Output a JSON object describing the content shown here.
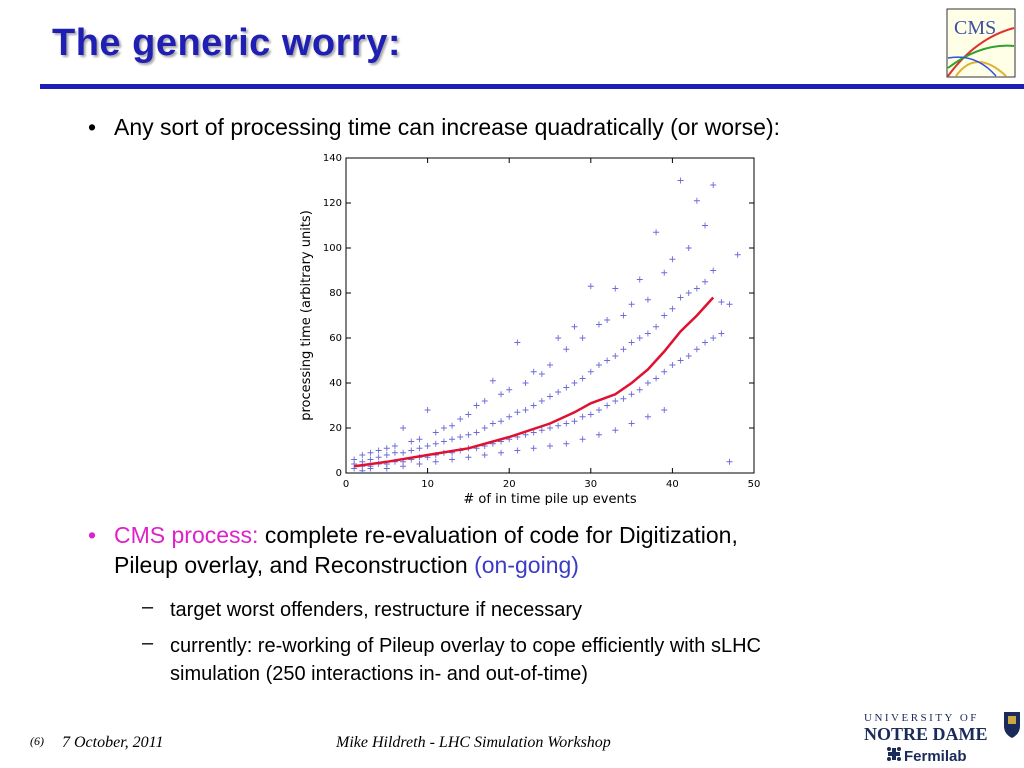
{
  "slide": {
    "title": "The generic worry:",
    "bullet1": "Any sort of processing time can increase quadratically (or worse):",
    "bullet2_highlight": "CMS process:",
    "bullet2_line1": " complete re-evaluation of code for Digitization,",
    "bullet2_line2": "Pileup overlay, and Reconstruction ",
    "bullet2_ongoing": "(on-going)",
    "sub1": "target worst offenders, restructure if necessary",
    "sub2_line1": "currently: re-working of Pileup overlay to cope efficiently with sLHC",
    "sub2_line2": "simulation (250 interactions in- and out-of-time)"
  },
  "logos": {
    "cms": "CMS",
    "notre_dame_top": "UNIVERSITY OF",
    "notre_dame_bottom": "NOTRE DAME",
    "fermilab": "Fermilab"
  },
  "footer": {
    "page": "(6)",
    "date": "7 October, 2011",
    "author": "Mike Hildreth  - LHC Simulation Workshop"
  },
  "colors": {
    "title": "#1f1fb4",
    "highlight": "#e020c8",
    "ongoing": "#3b3bc8",
    "points": "#6b6bd8",
    "curve": "#e01030"
  },
  "chart_data": {
    "type": "scatter",
    "xlabel": "# of in time pile up events",
    "ylabel": "processing time (arbitrary units)",
    "xlim": [
      0,
      50
    ],
    "ylim": [
      0,
      140
    ],
    "x_ticks": [
      "0",
      "10",
      "20",
      "30",
      "40",
      "50"
    ],
    "y_ticks": [
      "0",
      "20",
      "40",
      "60",
      "80",
      "100",
      "120",
      "140"
    ],
    "series": [
      {
        "marker": "+",
        "points": [
          [
            1,
            2
          ],
          [
            1,
            4
          ],
          [
            1,
            6
          ],
          [
            2,
            3
          ],
          [
            2,
            5
          ],
          [
            2,
            8
          ],
          [
            3,
            3
          ],
          [
            3,
            6
          ],
          [
            3,
            9
          ],
          [
            4,
            4
          ],
          [
            4,
            7
          ],
          [
            4,
            10
          ],
          [
            5,
            4
          ],
          [
            5,
            8
          ],
          [
            5,
            11
          ],
          [
            6,
            5
          ],
          [
            6,
            9
          ],
          [
            6,
            12
          ],
          [
            7,
            5
          ],
          [
            7,
            9
          ],
          [
            7,
            20
          ],
          [
            8,
            6
          ],
          [
            8,
            10
          ],
          [
            8,
            14
          ],
          [
            9,
            7
          ],
          [
            9,
            11
          ],
          [
            9,
            15
          ],
          [
            10,
            7
          ],
          [
            10,
            12
          ],
          [
            10,
            28
          ],
          [
            11,
            8
          ],
          [
            11,
            13
          ],
          [
            11,
            18
          ],
          [
            12,
            9
          ],
          [
            12,
            14
          ],
          [
            12,
            20
          ],
          [
            13,
            9
          ],
          [
            13,
            15
          ],
          [
            13,
            21
          ],
          [
            14,
            10
          ],
          [
            14,
            16
          ],
          [
            14,
            24
          ],
          [
            15,
            11
          ],
          [
            15,
            17
          ],
          [
            15,
            26
          ],
          [
            16,
            11
          ],
          [
            16,
            18
          ],
          [
            16,
            30
          ],
          [
            17,
            12
          ],
          [
            17,
            20
          ],
          [
            17,
            32
          ],
          [
            18,
            13
          ],
          [
            18,
            22
          ],
          [
            18,
            41
          ],
          [
            19,
            14
          ],
          [
            19,
            23
          ],
          [
            19,
            35
          ],
          [
            20,
            15
          ],
          [
            20,
            25
          ],
          [
            20,
            37
          ],
          [
            21,
            16
          ],
          [
            21,
            27
          ],
          [
            21,
            58
          ],
          [
            22,
            17
          ],
          [
            22,
            28
          ],
          [
            22,
            40
          ],
          [
            23,
            18
          ],
          [
            23,
            30
          ],
          [
            23,
            45
          ],
          [
            24,
            19
          ],
          [
            24,
            32
          ],
          [
            24,
            44
          ],
          [
            25,
            20
          ],
          [
            25,
            34
          ],
          [
            25,
            48
          ],
          [
            26,
            21
          ],
          [
            26,
            36
          ],
          [
            26,
            60
          ],
          [
            27,
            22
          ],
          [
            27,
            38
          ],
          [
            27,
            55
          ],
          [
            28,
            23
          ],
          [
            28,
            40
          ],
          [
            28,
            65
          ],
          [
            29,
            25
          ],
          [
            29,
            42
          ],
          [
            29,
            60
          ],
          [
            30,
            26
          ],
          [
            30,
            45
          ],
          [
            30,
            83
          ],
          [
            31,
            28
          ],
          [
            31,
            48
          ],
          [
            31,
            66
          ],
          [
            32,
            30
          ],
          [
            32,
            50
          ],
          [
            32,
            68
          ],
          [
            33,
            32
          ],
          [
            33,
            52
          ],
          [
            33,
            82
          ],
          [
            34,
            33
          ],
          [
            34,
            55
          ],
          [
            34,
            70
          ],
          [
            35,
            35
          ],
          [
            35,
            58
          ],
          [
            35,
            75
          ],
          [
            36,
            37
          ],
          [
            36,
            60
          ],
          [
            36,
            86
          ],
          [
            37,
            40
          ],
          [
            37,
            62
          ],
          [
            37,
            77
          ],
          [
            38,
            42
          ],
          [
            38,
            65
          ],
          [
            38,
            107
          ],
          [
            39,
            45
          ],
          [
            39,
            70
          ],
          [
            39,
            89
          ],
          [
            40,
            48
          ],
          [
            40,
            73
          ],
          [
            40,
            95
          ],
          [
            41,
            50
          ],
          [
            41,
            78
          ],
          [
            41,
            130
          ],
          [
            42,
            52
          ],
          [
            42,
            80
          ],
          [
            42,
            100
          ],
          [
            43,
            55
          ],
          [
            43,
            82
          ],
          [
            43,
            121
          ],
          [
            44,
            58
          ],
          [
            44,
            85
          ],
          [
            44,
            110
          ],
          [
            45,
            60
          ],
          [
            45,
            90
          ],
          [
            45,
            128
          ],
          [
            46,
            62
          ],
          [
            46,
            76
          ],
          [
            47,
            5
          ],
          [
            47,
            75
          ],
          [
            48,
            97
          ],
          [
            2,
            1
          ],
          [
            3,
            2
          ],
          [
            5,
            2
          ],
          [
            7,
            3
          ],
          [
            9,
            4
          ],
          [
            11,
            5
          ],
          [
            13,
            6
          ],
          [
            15,
            7
          ],
          [
            17,
            8
          ],
          [
            19,
            9
          ],
          [
            21,
            10
          ],
          [
            23,
            11
          ],
          [
            25,
            12
          ],
          [
            27,
            13
          ],
          [
            29,
            15
          ],
          [
            31,
            17
          ],
          [
            33,
            19
          ],
          [
            35,
            22
          ],
          [
            37,
            25
          ],
          [
            39,
            28
          ]
        ]
      },
      {
        "type": "line",
        "points": [
          [
            1,
            3
          ],
          [
            5,
            5
          ],
          [
            10,
            8
          ],
          [
            15,
            11
          ],
          [
            20,
            16
          ],
          [
            25,
            22
          ],
          [
            28,
            27
          ],
          [
            30,
            31
          ],
          [
            33,
            35
          ],
          [
            35,
            40
          ],
          [
            37,
            46
          ],
          [
            39,
            54
          ],
          [
            41,
            63
          ],
          [
            43,
            70
          ],
          [
            45,
            78
          ]
        ]
      }
    ]
  }
}
